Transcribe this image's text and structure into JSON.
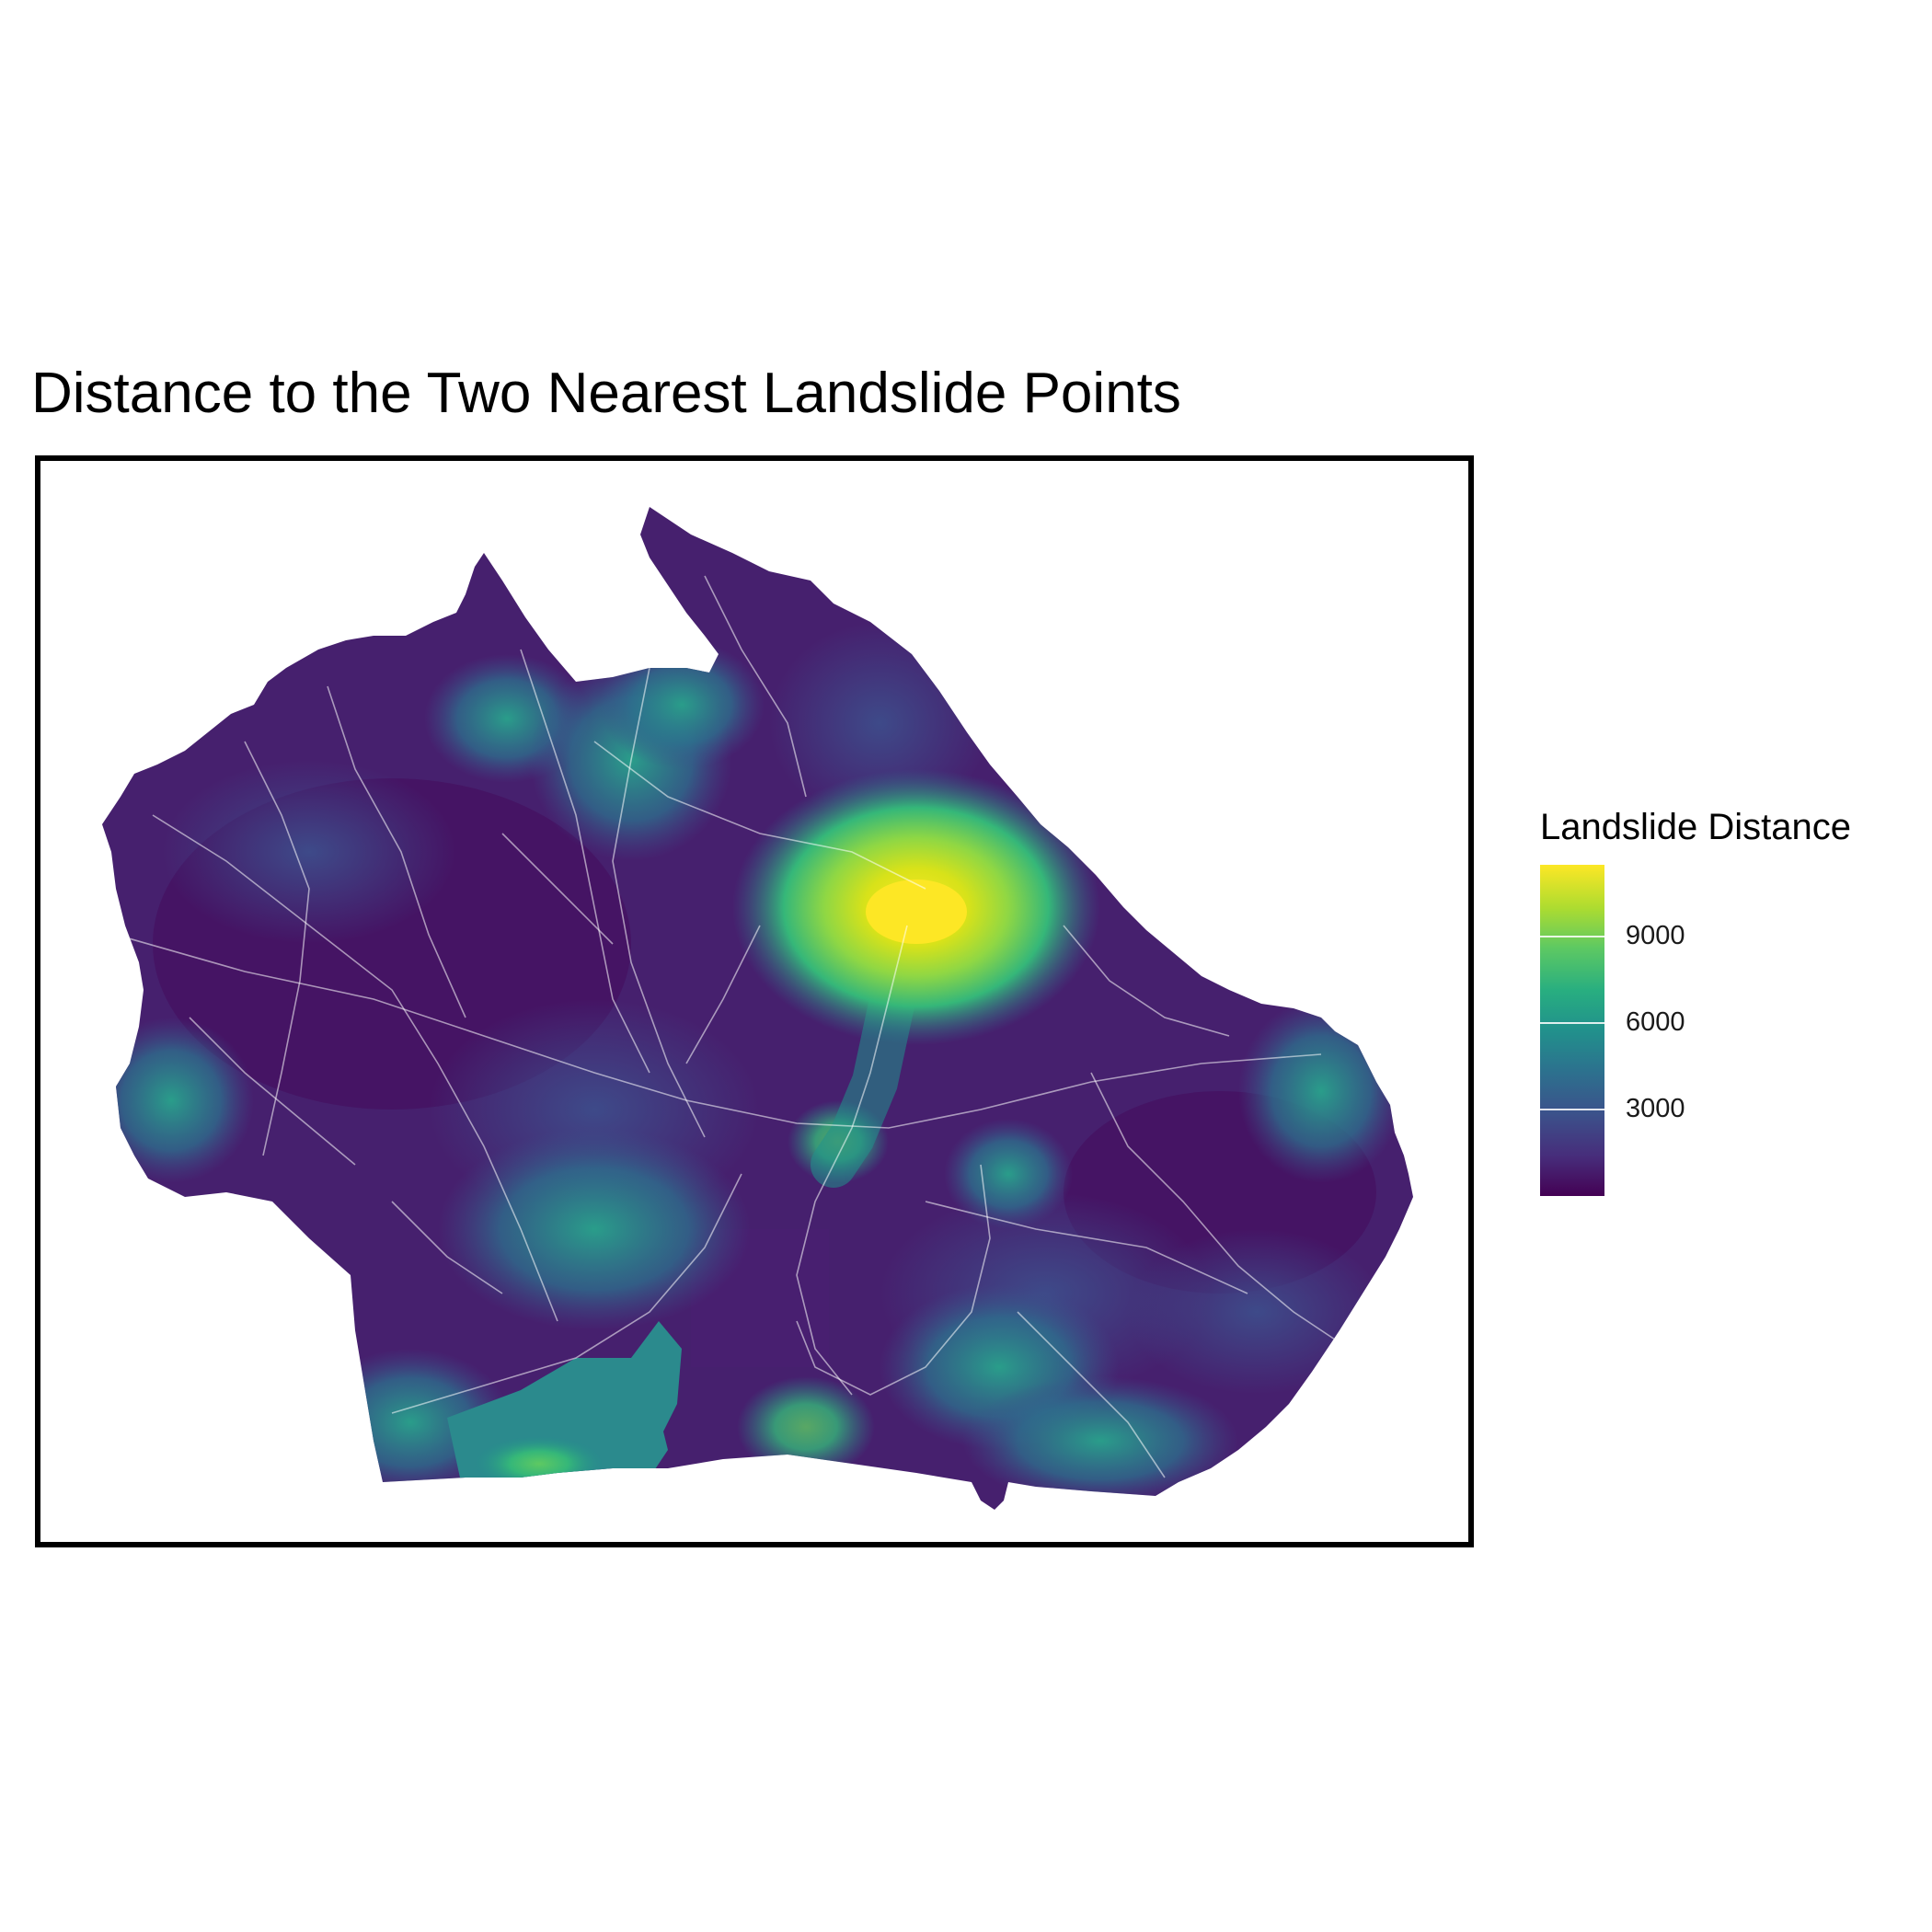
{
  "title": "Distance to the Two Nearest Landslide Points",
  "legend": {
    "title": "Landslide Distance",
    "ticks": [
      {
        "value": 9000,
        "label": "9000"
      },
      {
        "value": 6000,
        "label": "6000"
      },
      {
        "value": 3000,
        "label": "3000"
      }
    ],
    "range": [
      0,
      11500
    ],
    "palette": "viridis"
  },
  "colors": {
    "low": "#440154",
    "mid": "#21918c",
    "high": "#fde725",
    "frame": "#000000",
    "roads": "#ffffff"
  }
}
